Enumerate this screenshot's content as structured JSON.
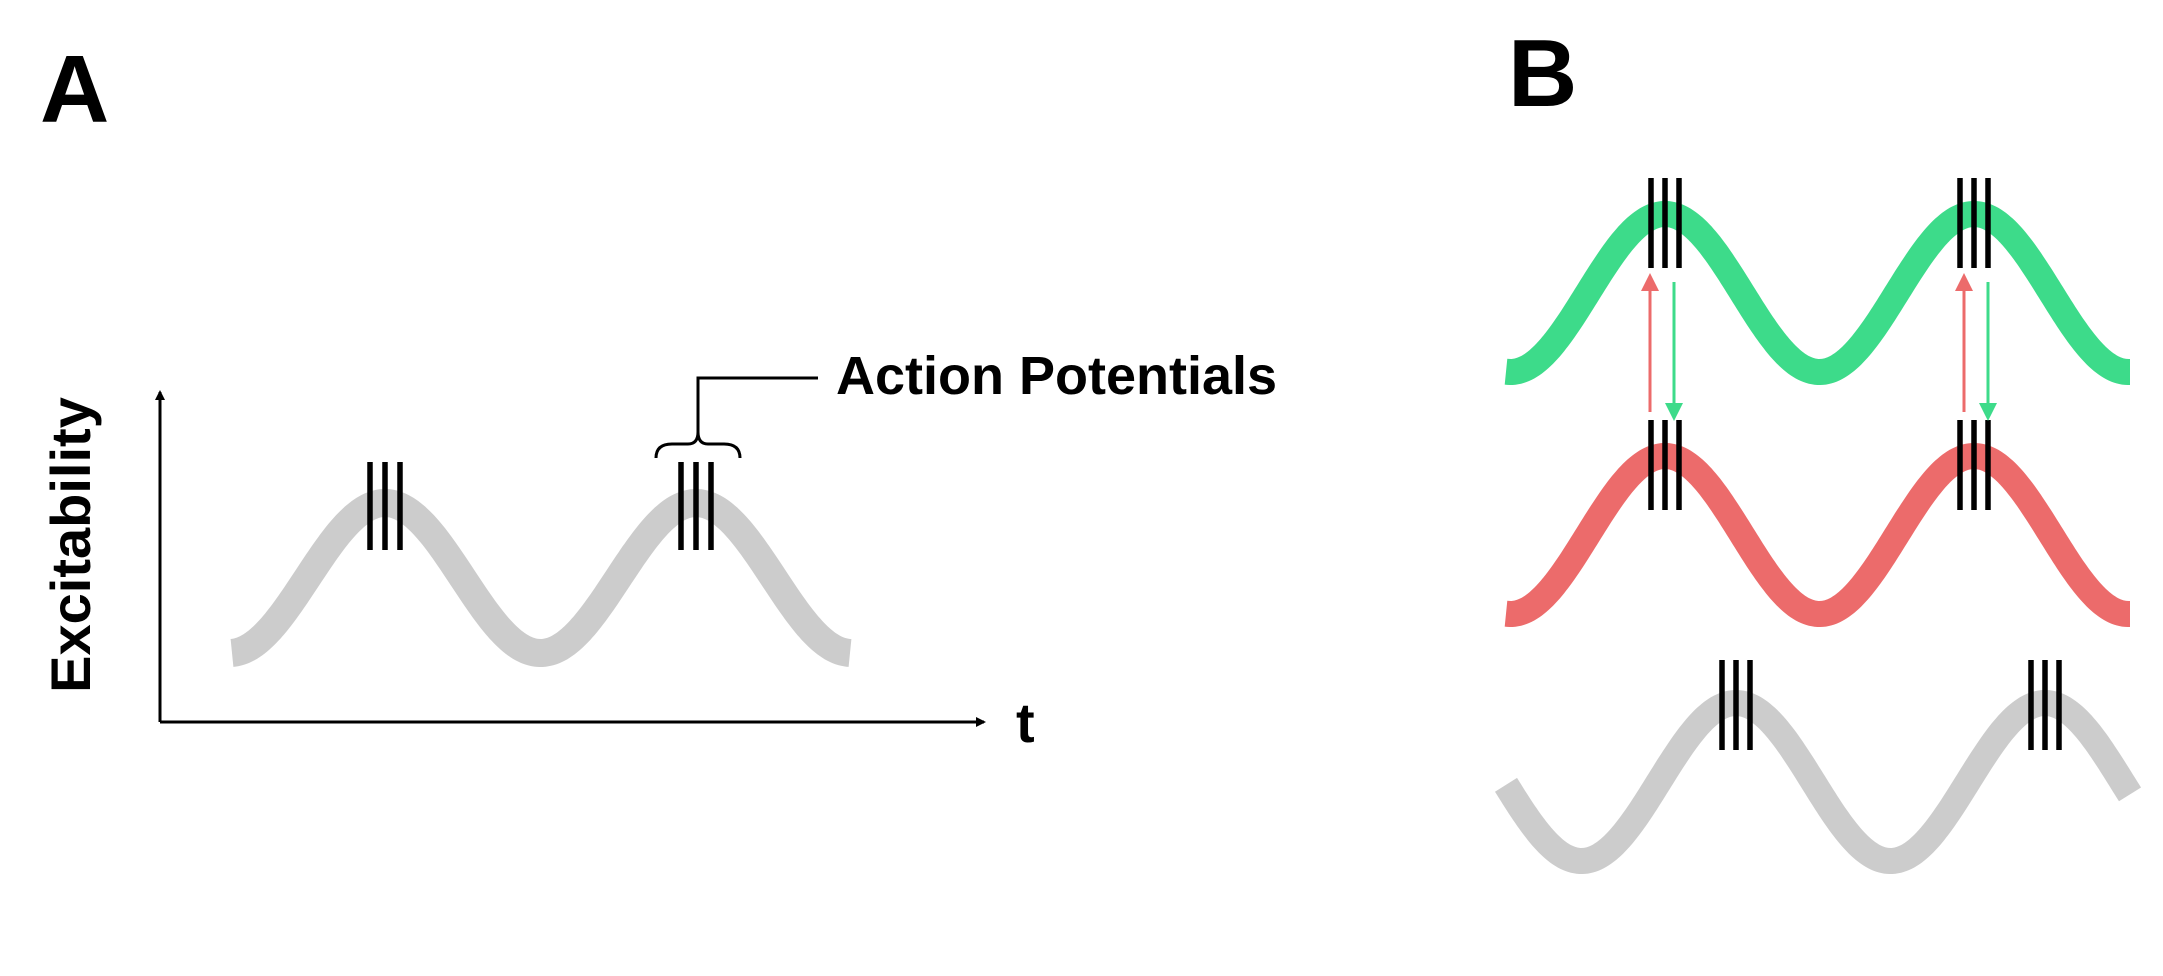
{
  "panel_a": {
    "label": "A",
    "y_axis_label": "Excitability",
    "x_axis_label": "t",
    "annotation": "Action Potentials",
    "wave_color": "#cccccc",
    "spike_color": "#000000",
    "spikes_per_burst": 3,
    "peaks": 2
  },
  "panel_b": {
    "label": "B",
    "waves": [
      {
        "name": "upper-oscillation",
        "color": "#3ddb8a",
        "peaks": 2,
        "spikes_per_burst": 3
      },
      {
        "name": "middle-oscillation",
        "color": "#ec6b6b",
        "peaks": 2,
        "spikes_per_burst": 3
      },
      {
        "name": "lower-oscillation",
        "color": "#cccccc",
        "peaks": 2,
        "spikes_per_burst": 3,
        "phase": "shifted"
      }
    ],
    "arrows": [
      {
        "name": "upward-coupling-arrow",
        "color": "#ec6b6b",
        "direction": "up"
      },
      {
        "name": "downward-coupling-arrow",
        "color": "#3ddb8a",
        "direction": "down"
      }
    ]
  }
}
